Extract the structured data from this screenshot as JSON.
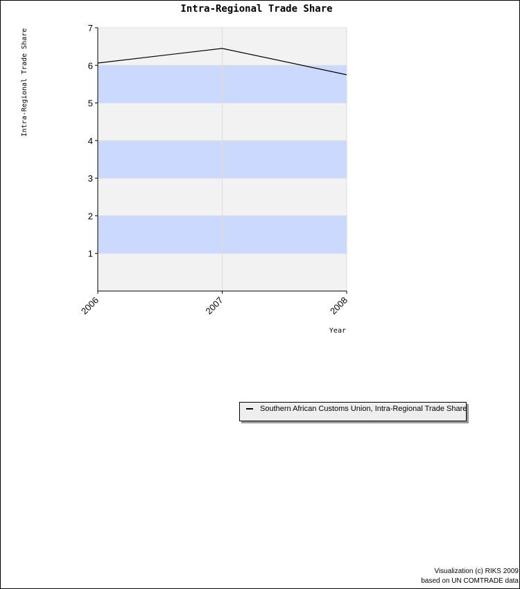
{
  "chart_data": {
    "type": "line",
    "title": "Intra-Regional Trade Share",
    "xlabel": "Year",
    "ylabel": "Intra-Regional Trade Share",
    "x": [
      "2006",
      "2007",
      "2008"
    ],
    "yticks": [
      1,
      2,
      3,
      4,
      5,
      6,
      7
    ],
    "ylim": [
      0,
      7
    ],
    "grid": true,
    "band_color": "#ccd9ff",
    "plot_background": "#f2f2f2",
    "series": [
      {
        "name": "Southern African Customs Union, Intra-Regional Trade Share",
        "color": "#000000",
        "values": [
          6.06,
          6.45,
          5.75
        ]
      }
    ],
    "legend_position": "bottom-right"
  },
  "credits": {
    "line1": "Visualization (c) RIKS 2009",
    "line2": "based on UN COMTRADE data"
  }
}
